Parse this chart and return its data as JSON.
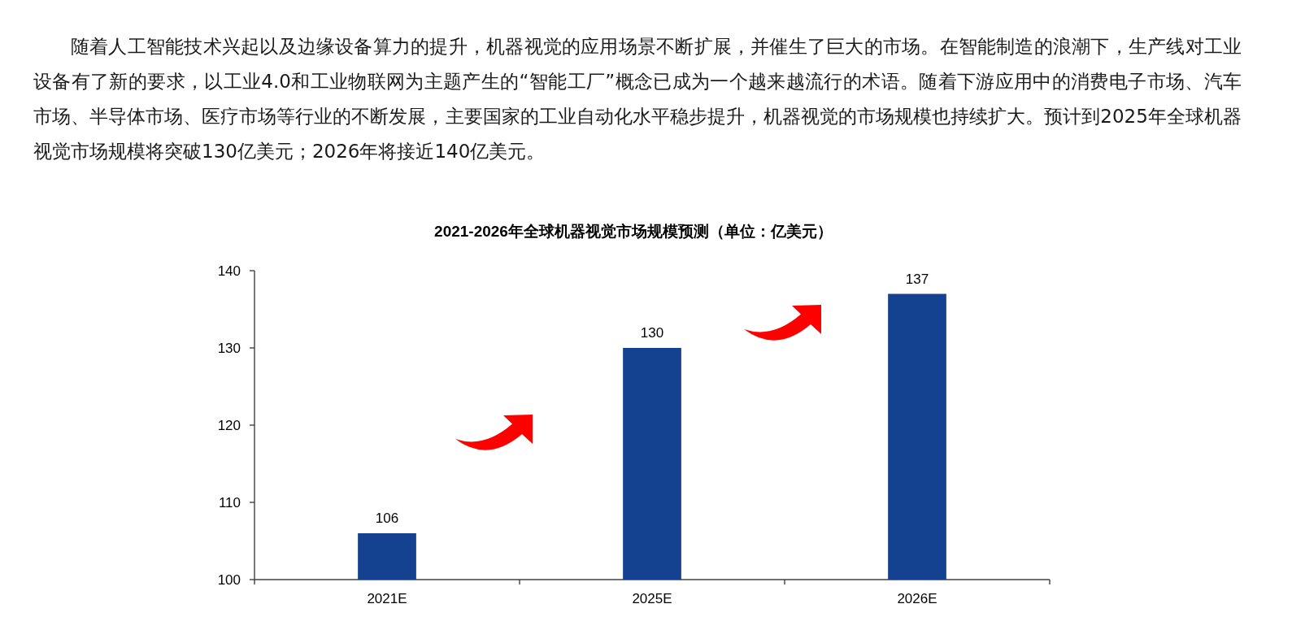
{
  "chart_data": {
    "type": "bar",
    "title": "2021-2026年全球机器视觉市场规模预测（单位：亿美元）",
    "categories": [
      "2021E",
      "2025E",
      "2026E"
    ],
    "values": [
      106,
      130,
      137
    ],
    "color": "#144290",
    "ylim": [
      100,
      140
    ],
    "yticks": [
      100,
      110,
      120,
      130,
      140
    ],
    "data_labels": true,
    "annotations": [
      "随着人工智能技术兴起以及边缘设备算力的提升，机器视觉的应用场景不断扩展，并催生了巨大的市场。在智能制造的浪潮下，生产线对工业设备有了新的要求，以工业4.0和工业物联网为主题产生的“智能工厂”概念已成为一个越来越流行的术语。随着下游应用中的消费电子市场、汽车市场、半导体市场、医疗市场等行业的不断发展，主要国家的工业自动化水平稳步提升，机器视觉的市场规模也持续扩大。预计到2025年全球机器视觉市场规模将突破130亿美元；2026年将接近140亿美元。"
    ]
  }
}
